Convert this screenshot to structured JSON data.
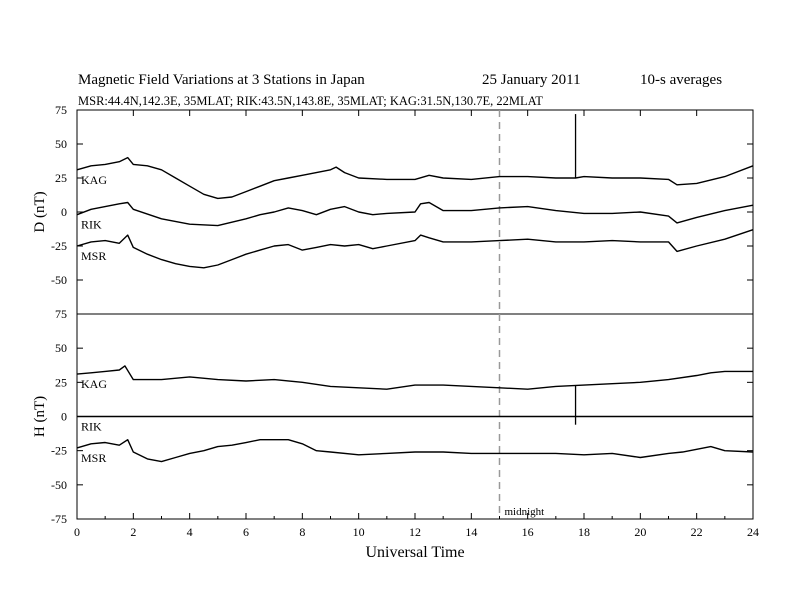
{
  "chart_data": {
    "type": "line",
    "title": "Magnetic Field Variations at 3 Stations in Japan",
    "date": "25 January 2011",
    "averaging": "10-s averages",
    "subtitle": "MSR:44.4N,142.3E, 35MLAT;  RIK:43.5N,143.8E, 35MLAT;  KAG:31.5N,130.7E, 22MLAT",
    "xlabel": "Universal Time",
    "xlim": [
      0,
      24
    ],
    "xticks": [
      "0",
      "2",
      "4",
      "6",
      "8",
      "10",
      "12",
      "14",
      "16",
      "18",
      "20",
      "22",
      "24"
    ],
    "midnight": {
      "x": 15,
      "label": "midnight"
    },
    "panels": [
      {
        "ylabel": "D (nT)",
        "ylim": [
          -75,
          75
        ],
        "yticks": [
          "75",
          "50",
          "25",
          "0",
          "-25",
          "-50",
          "-75"
        ],
        "spike": {
          "x": 17.7,
          "y1": 25,
          "y2": 72
        },
        "series": [
          {
            "name": "KAG",
            "x": [
              0,
              0.5,
              1,
              1.5,
              1.8,
              2,
              2.5,
              3,
              3.5,
              4,
              4.5,
              5,
              5.5,
              6,
              6.5,
              7,
              7.5,
              8,
              8.5,
              9,
              9.2,
              9.5,
              10,
              11,
              12,
              12.5,
              13,
              14,
              15,
              16,
              17,
              17.7,
              18,
              19,
              20,
              21,
              21.3,
              22,
              23,
              24
            ],
            "y": [
              31,
              34,
              35,
              37,
              40,
              35,
              34,
              31,
              25,
              19,
              13,
              10,
              11,
              15,
              19,
              23,
              25,
              27,
              29,
              31,
              33,
              29,
              25,
              24,
              24,
              27,
              25,
              24,
              26,
              26,
              25,
              25,
              26,
              25,
              25,
              24,
              20,
              21,
              26,
              34
            ]
          },
          {
            "name": "RIK",
            "x": [
              0,
              0.5,
              1,
              1.5,
              1.8,
              2,
              3,
              4,
              5,
              6,
              6.5,
              7,
              7.5,
              8,
              8.5,
              9,
              9.5,
              10,
              10.5,
              11,
              12,
              12.2,
              12.5,
              13,
              14,
              15,
              16,
              17,
              18,
              19,
              20,
              21,
              21.3,
              22,
              23,
              24
            ],
            "y": [
              -2,
              2,
              4,
              6,
              7,
              2,
              -5,
              -9,
              -10,
              -5,
              -2,
              0,
              3,
              1,
              -2,
              2,
              4,
              0,
              -2,
              -1,
              0,
              6,
              7,
              1,
              1,
              3,
              4,
              1,
              -1,
              -1,
              0,
              -3,
              -8,
              -4,
              1,
              5
            ]
          },
          {
            "name": "MSR",
            "x": [
              0,
              0.5,
              1,
              1.5,
              1.8,
              2,
              2.5,
              3,
              3.5,
              4,
              4.5,
              5,
              5.5,
              6,
              6.5,
              7,
              7.5,
              8,
              8.5,
              9,
              9.5,
              10,
              10.5,
              11,
              12,
              12.2,
              12.5,
              13,
              14,
              15,
              16,
              17,
              18,
              19,
              20,
              21,
              21.3,
              22,
              23,
              24
            ],
            "y": [
              -25,
              -22,
              -21,
              -23,
              -17,
              -26,
              -31,
              -35,
              -38,
              -40,
              -41,
              -39,
              -35,
              -31,
              -28,
              -25,
              -24,
              -28,
              -26,
              -24,
              -25,
              -24,
              -27,
              -25,
              -21,
              -17,
              -19,
              -22,
              -22,
              -21,
              -20,
              -22,
              -22,
              -21,
              -22,
              -22,
              -29,
              -25,
              -20,
              -13
            ]
          }
        ]
      },
      {
        "ylabel": "H (nT)",
        "ylim": [
          -75,
          75
        ],
        "yticks": [
          "75",
          "50",
          "25",
          "0",
          "-25",
          "-50",
          "-75"
        ],
        "spike": {
          "x": 17.7,
          "y1": 23,
          "y2": -6
        },
        "series": [
          {
            "name": "KAG",
            "x": [
              0,
              0.5,
              1,
              1.5,
              1.7,
              2,
              3,
              4,
              5,
              6,
              7,
              8,
              9,
              10,
              11,
              12,
              13,
              14,
              15,
              16,
              17,
              18,
              19,
              20,
              21,
              22,
              22.5,
              23,
              24
            ],
            "y": [
              31,
              32,
              33,
              34,
              37,
              27,
              27,
              29,
              27,
              26,
              27,
              25,
              22,
              21,
              20,
              23,
              23,
              22,
              21,
              20,
              22,
              23,
              24,
              25,
              27,
              30,
              32,
              33,
              33
            ]
          },
          {
            "name": "RIK",
            "x": [
              0,
              24
            ],
            "y": [
              0,
              0
            ]
          },
          {
            "name": "MSR",
            "x": [
              0,
              0.5,
              1,
              1.5,
              1.8,
              2,
              2.5,
              3,
              3.5,
              4,
              4.5,
              5,
              5.5,
              6,
              6.5,
              7,
              7.5,
              8,
              8.5,
              9,
              10,
              11,
              12,
              13,
              14,
              15,
              16,
              17,
              18,
              19,
              20,
              21,
              21.5,
              22,
              22.5,
              23,
              24
            ],
            "y": [
              -23,
              -20,
              -19,
              -21,
              -17,
              -26,
              -31,
              -33,
              -30,
              -27,
              -25,
              -22,
              -21,
              -19,
              -17,
              -17,
              -17,
              -20,
              -25,
              -26,
              -28,
              -27,
              -26,
              -26,
              -27,
              -27,
              -27,
              -27,
              -28,
              -27,
              -30,
              -27,
              -26,
              -24,
              -22,
              -25,
              -26
            ]
          }
        ]
      }
    ]
  }
}
